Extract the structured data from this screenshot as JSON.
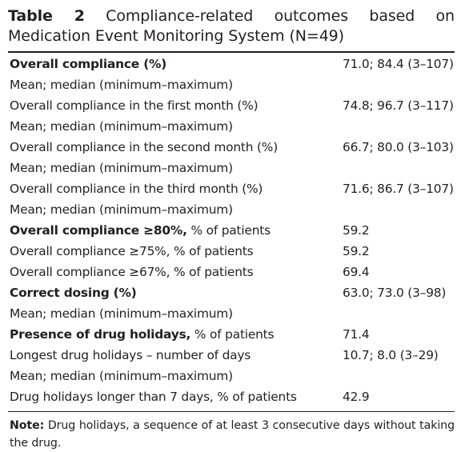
{
  "table": {
    "label": "Table 2",
    "title": "Compliance-related outcomes based on Medication Event Monitoring System (N=49)",
    "rows": [
      {
        "lead": "Overall compliance (%)",
        "rest": "",
        "value": "71.0; 84.4 (3–107)"
      },
      {
        "lead": "",
        "rest": "Mean; median (minimum–maximum)",
        "value": ""
      },
      {
        "lead": "",
        "rest": "Overall compliance in the first month (%)",
        "value": "74.8; 96.7 (3–117)"
      },
      {
        "lead": "",
        "rest": "Mean; median (minimum–maximum)",
        "value": ""
      },
      {
        "lead": "",
        "rest": "Overall compliance in the second month (%)",
        "value": "66.7; 80.0 (3–103)"
      },
      {
        "lead": "",
        "rest": "Mean; median (minimum–maximum)",
        "value": ""
      },
      {
        "lead": "",
        "rest": "Overall compliance in the third month (%)",
        "value": "71.6; 86.7 (3–107)"
      },
      {
        "lead": "",
        "rest": "Mean; median (minimum–maximum)",
        "value": ""
      },
      {
        "lead": "Overall compliance ≥80%,",
        "rest": " % of patients",
        "value": "59.2"
      },
      {
        "lead": "",
        "rest": "Overall compliance ≥75%, % of patients",
        "value": "59.2"
      },
      {
        "lead": "",
        "rest": "Overall compliance ≥67%, % of patients",
        "value": "69.4"
      },
      {
        "lead": "Correct dosing (%)",
        "rest": "",
        "value": "63.0; 73.0 (3–98)"
      },
      {
        "lead": "",
        "rest": "Mean; median (minimum–maximum)",
        "value": ""
      },
      {
        "lead": "Presence of drug holidays,",
        "rest": " % of patients",
        "value": "71.4"
      },
      {
        "lead": "",
        "rest": "Longest drug holidays – number of days",
        "value": "10.7; 8.0 (3–29)"
      },
      {
        "lead": "",
        "rest": "Mean; median (minimum–maximum)",
        "value": ""
      },
      {
        "lead": "",
        "rest": "Drug holidays longer than 7 days, % of patients",
        "value": "42.9"
      }
    ],
    "note_label": "Note:",
    "note_text": " Drug holidays, a sequence of at least 3 consecutive days without taking the drug."
  }
}
